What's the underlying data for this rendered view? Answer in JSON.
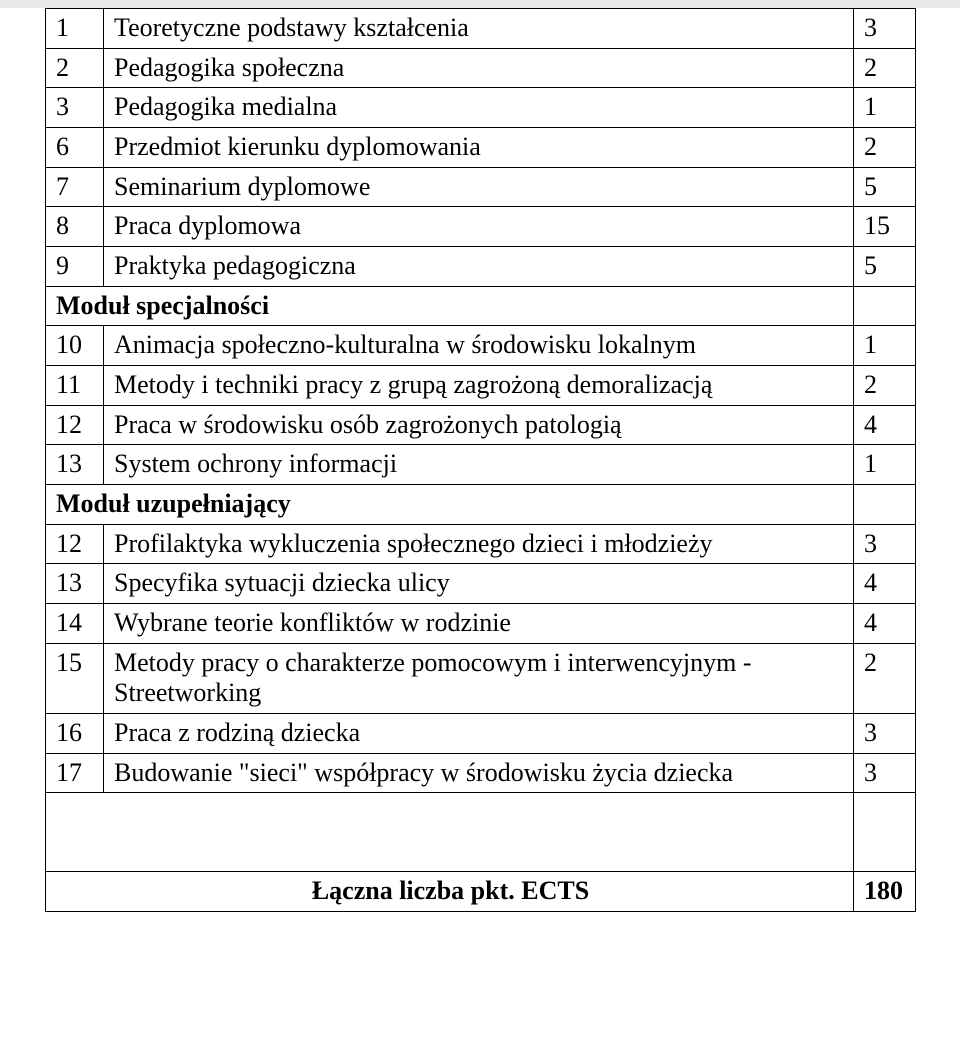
{
  "colors": {
    "text_black": "#000000",
    "text_blue": "#001a8a",
    "border": "#000000",
    "background": "#ffffff"
  },
  "font": {
    "family": "Times New Roman",
    "size_pt": 20
  },
  "rows": {
    "r1": {
      "num": "1",
      "title": "Teoretyczne podstawy kształcenia",
      "val": "3"
    },
    "r2": {
      "num": "2",
      "title": "Pedagogika społeczna",
      "val": "2"
    },
    "r3": {
      "num": "3",
      "title": "Pedagogika medialna",
      "val": "1"
    },
    "r4": {
      "num": "6",
      "title": "Przedmiot kierunku dyplomowania",
      "val": "2"
    },
    "r5": {
      "num": "7",
      "title": "Seminarium dyplomowe",
      "val": "5"
    },
    "r6": {
      "num": "8",
      "title": "Praca dyplomowa",
      "val": "15"
    },
    "r7": {
      "num": "9",
      "title": "Praktyka pedagogiczna",
      "val": "5"
    },
    "sec1": {
      "title": "Moduł specjalności"
    },
    "r8": {
      "num": "10",
      "title": "Animacja społeczno-kulturalna w środowisku lokalnym",
      "val": "1"
    },
    "r9": {
      "num": "11",
      "title": "Metody i techniki pracy z grupą zagrożoną demoralizacją",
      "val": "2"
    },
    "r10": {
      "num": "12",
      "title": "Praca w środowisku osób zagrożonych patologią",
      "val": "4"
    },
    "r11": {
      "num": "13",
      "title": "System ochrony informacji",
      "val": "1"
    },
    "sec2": {
      "title": "Moduł uzupełniający"
    },
    "r12": {
      "num": "12",
      "title": "Profilaktyka wykluczenia społecznego dzieci i młodzieży",
      "val": "3"
    },
    "r13": {
      "num": "13",
      "title": "Specyfika sytuacji dziecka ulicy",
      "val": "4"
    },
    "r14": {
      "num": "14",
      "title": "Wybrane teorie konfliktów w rodzinie",
      "val": "4"
    },
    "r15": {
      "num": "15",
      "title": "Metody pracy o charakterze pomocowym i interwencyjnym - Streetworking",
      "val": "2"
    },
    "r16": {
      "num": "16",
      "title": "Praca z rodziną dziecka",
      "val": "3"
    },
    "r17": {
      "num": "17",
      "title": "Budowanie \"sieci\" współpracy w środowisku życia dziecka",
      "val": "3"
    },
    "total": {
      "label": "Łączna liczba pkt. ECTS",
      "val": "180"
    }
  }
}
